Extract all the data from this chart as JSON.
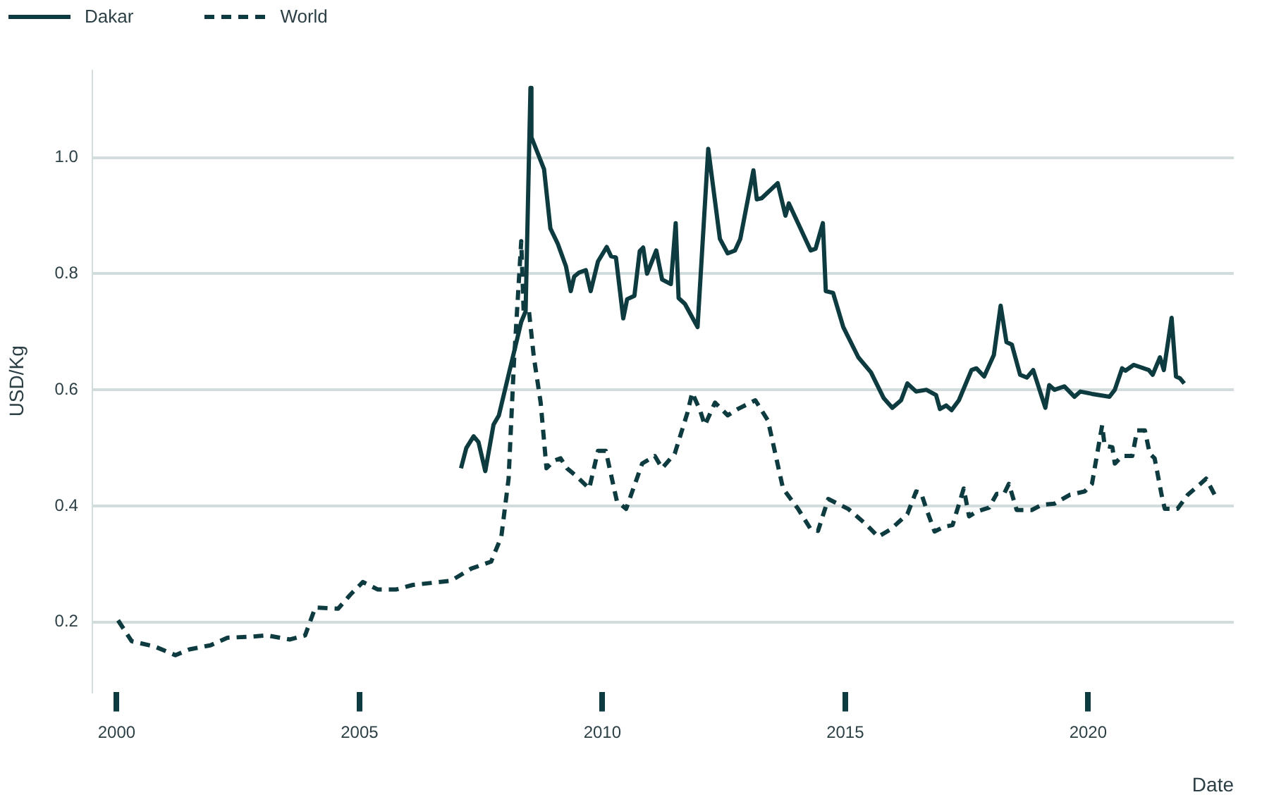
{
  "chart_data": {
    "type": "line",
    "xlabel": "Date",
    "ylabel": "USD/Kg",
    "xlim": [
      1999.5,
      2023
    ],
    "xticks": [
      2000,
      2005,
      2010,
      2015,
      2020
    ],
    "ylim": [
      0.08,
      1.15
    ],
    "yticks": [
      0.2,
      0.4,
      0.6,
      0.8,
      {
        "value": 1,
        "label": "1.0"
      }
    ],
    "grid": "y",
    "legend": "top left",
    "series": [
      {
        "name": "Dakar",
        "color": "#0d3b3f",
        "line_style": "solid",
        "x": [
          2007.09,
          2007.2,
          2007.35,
          2007.45,
          2007.59,
          2007.76,
          2007.87,
          2008.33,
          2008.42,
          2008.52,
          2008.54,
          2008.8,
          2008.93,
          2009.08,
          2009.25,
          2009.35,
          2009.42,
          2009.52,
          2009.66,
          2009.76,
          2009.91,
          2010.09,
          2010.18,
          2010.28,
          2010.43,
          2010.51,
          2010.66,
          2010.77,
          2010.84,
          2010.92,
          2011.11,
          2011.23,
          2011.41,
          2011.51,
          2011.57,
          2011.7,
          2011.96,
          2012.18,
          2012.42,
          2012.58,
          2012.73,
          2012.84,
          2013.11,
          2013.18,
          2013.28,
          2013.61,
          2013.77,
          2013.84,
          2014.29,
          2014.39,
          2014.54,
          2014.6,
          2014.75,
          2014.96,
          2015.27,
          2015.53,
          2015.79,
          2015.97,
          2016.15,
          2016.28,
          2016.46,
          2016.67,
          2016.87,
          2016.95,
          2017.08,
          2017.19,
          2017.34,
          2017.6,
          2017.7,
          2017.86,
          2018.06,
          2018.2,
          2018.32,
          2018.43,
          2018.6,
          2018.74,
          2018.87,
          2019.12,
          2019.2,
          2019.31,
          2019.51,
          2019.72,
          2019.84,
          2020.08,
          2020.44,
          2020.55,
          2020.7,
          2020.77,
          2020.94,
          2021.25,
          2021.33,
          2021.48,
          2021.56,
          2021.72,
          2021.81,
          2021.89,
          2021.98
        ],
        "values": [
          0.465,
          0.5,
          0.52,
          0.51,
          0.46,
          0.54,
          0.556,
          0.717,
          0.735,
          1.12,
          1.035,
          0.98,
          0.878,
          0.852,
          0.813,
          0.77,
          0.795,
          0.802,
          0.806,
          0.77,
          0.821,
          0.846,
          0.83,
          0.828,
          0.723,
          0.756,
          0.762,
          0.839,
          0.845,
          0.8,
          0.84,
          0.79,
          0.782,
          0.887,
          0.758,
          0.748,
          0.708,
          1.015,
          0.86,
          0.835,
          0.84,
          0.86,
          0.978,
          0.928,
          0.93,
          0.956,
          0.9,
          0.921,
          0.84,
          0.843,
          0.887,
          0.77,
          0.767,
          0.708,
          0.656,
          0.63,
          0.586,
          0.569,
          0.582,
          0.611,
          0.597,
          0.6,
          0.591,
          0.567,
          0.573,
          0.565,
          0.582,
          0.634,
          0.637,
          0.623,
          0.66,
          0.745,
          0.682,
          0.678,
          0.626,
          0.621,
          0.634,
          0.569,
          0.608,
          0.6,
          0.606,
          0.588,
          0.597,
          0.593,
          0.588,
          0.6,
          0.637,
          0.633,
          0.643,
          0.634,
          0.626,
          0.656,
          0.634,
          0.724,
          0.623,
          0.62,
          0.611
        ]
      },
      {
        "name": "World",
        "color": "#0d3b3f",
        "line_style": "dashed",
        "x": [
          2000.03,
          2000.31,
          2000.78,
          2001.21,
          2001.5,
          2001.93,
          2002.28,
          2002.8,
          2003.1,
          2003.57,
          2003.88,
          2004.09,
          2004.56,
          2004.81,
          2005.07,
          2005.38,
          2005.75,
          2006.1,
          2006.88,
          2007.3,
          2007.71,
          2007.92,
          2008.07,
          2008.18,
          2008.33,
          2008.38,
          2008.49,
          2008.59,
          2008.73,
          2008.85,
          2009.01,
          2009.14,
          2009.27,
          2009.47,
          2009.73,
          2009.91,
          2010.07,
          2010.3,
          2010.49,
          2010.82,
          2011.08,
          2011.23,
          2011.49,
          2011.75,
          2011.85,
          2012.01,
          2012.11,
          2012.32,
          2012.58,
          2012.79,
          2013.15,
          2013.41,
          2013.72,
          2014.03,
          2014.29,
          2014.44,
          2014.65,
          2015.06,
          2015.42,
          2015.68,
          2015.94,
          2016.28,
          2016.46,
          2016.56,
          2016.67,
          2016.84,
          2017.03,
          2017.21,
          2017.44,
          2017.55,
          2017.7,
          2017.96,
          2018.12,
          2018.27,
          2018.37,
          2018.53,
          2018.84,
          2019.05,
          2019.31,
          2019.62,
          2019.93,
          2020.08,
          2020.29,
          2020.34,
          2020.5,
          2020.55,
          2020.7,
          2020.91,
          2021.01,
          2021.17,
          2021.27,
          2021.37,
          2021.53,
          2021.58,
          2021.84,
          2022.05,
          2022.31,
          2022.43,
          2022.62
        ],
        "values": [
          0.203,
          0.167,
          0.158,
          0.143,
          0.153,
          0.16,
          0.173,
          0.175,
          0.177,
          0.17,
          0.177,
          0.225,
          0.223,
          0.247,
          0.269,
          0.256,
          0.256,
          0.264,
          0.271,
          0.292,
          0.304,
          0.347,
          0.447,
          0.647,
          0.856,
          0.735,
          0.735,
          0.656,
          0.578,
          0.465,
          0.478,
          0.482,
          0.465,
          0.451,
          0.43,
          0.495,
          0.495,
          0.408,
          0.395,
          0.473,
          0.486,
          0.465,
          0.49,
          0.56,
          0.595,
          0.565,
          0.539,
          0.578,
          0.556,
          0.567,
          0.582,
          0.547,
          0.43,
          0.395,
          0.36,
          0.357,
          0.412,
          0.395,
          0.369,
          0.347,
          0.36,
          0.386,
          0.425,
          0.423,
          0.395,
          0.356,
          0.364,
          0.367,
          0.43,
          0.382,
          0.39,
          0.397,
          0.421,
          0.421,
          0.438,
          0.393,
          0.393,
          0.402,
          0.404,
          0.419,
          0.425,
          0.438,
          0.539,
          0.504,
          0.501,
          0.473,
          0.486,
          0.486,
          0.53,
          0.53,
          0.49,
          0.482,
          0.412,
          0.395,
          0.395,
          0.419,
          0.438,
          0.447,
          0.417
        ]
      }
    ]
  }
}
